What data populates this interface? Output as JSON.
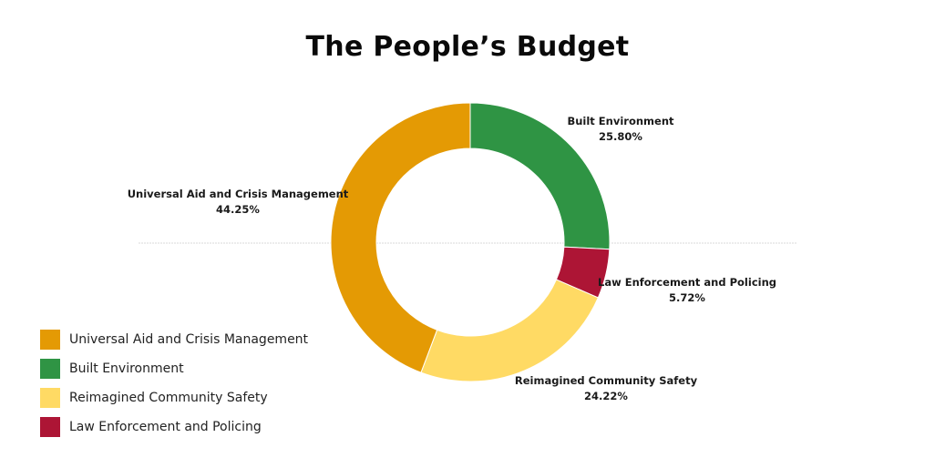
{
  "chart_data": {
    "type": "pie",
    "variant": "donut",
    "title": "The People’s Budget",
    "slices": [
      {
        "label": "Universal Aid and Crisis Management",
        "value": 44.25,
        "display": "44.25%",
        "color": "#E49A04"
      },
      {
        "label": "Built Environment",
        "value": 25.8,
        "display": "25.80%",
        "color": "#2F9444"
      },
      {
        "label": "Reimagined Community Safety",
        "value": 24.22,
        "display": "24.22%",
        "color": "#FFDA64"
      },
      {
        "label": "Law Enforcement and Policing",
        "value": 5.72,
        "display": "5.72%",
        "color": "#AD1535"
      }
    ],
    "draw_order": [
      1,
      3,
      2,
      0
    ],
    "start_angle_deg": 0,
    "direction": "clockwise",
    "legend_position": "bottom-left",
    "grid": false
  }
}
